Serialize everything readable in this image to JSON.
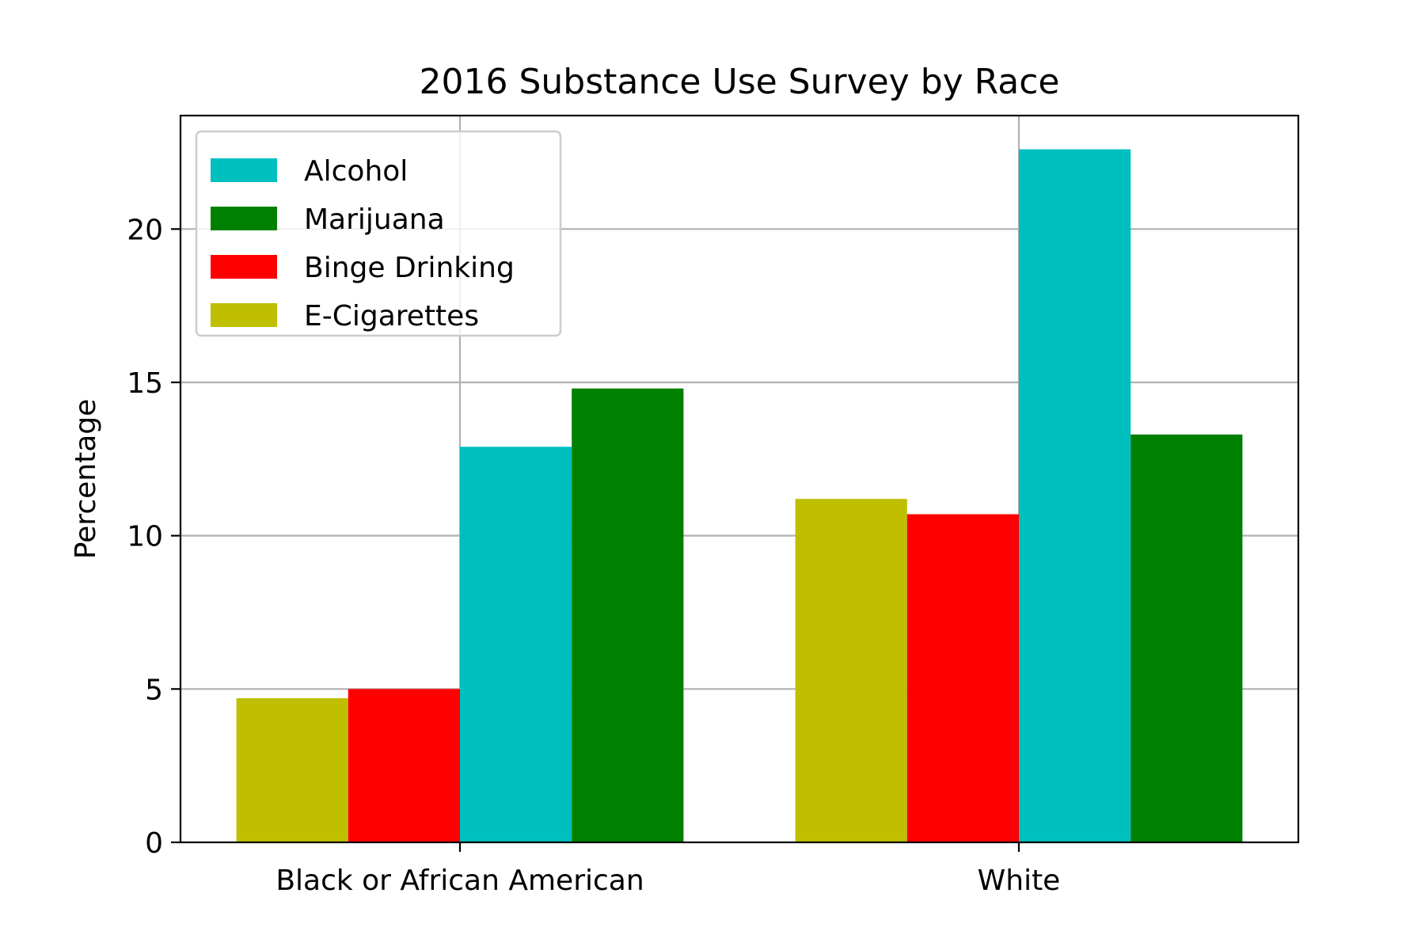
{
  "chart_data": {
    "type": "bar",
    "title": "2016 Substance Use Survey by Race",
    "xlabel": "",
    "ylabel": "Percentage",
    "categories": [
      "Black or African American",
      "White"
    ],
    "series": [
      {
        "name": "E-Cigarettes",
        "color": "#bfbf00",
        "values": [
          4.7,
          11.2
        ]
      },
      {
        "name": "Binge Drinking",
        "color": "#ff0000",
        "values": [
          5.0,
          10.7
        ]
      },
      {
        "name": "Alcohol",
        "color": "#00bfbf",
        "values": [
          12.9,
          22.6
        ]
      },
      {
        "name": "Marijuana",
        "color": "#008000",
        "values": [
          14.8,
          13.3
        ]
      }
    ],
    "legend_order": [
      "Alcohol",
      "Marijuana",
      "Binge Drinking",
      "E-Cigarettes"
    ],
    "legend_position": "top-left",
    "ylim": [
      0,
      23.7
    ],
    "yticks": [
      0,
      5,
      10,
      15,
      20
    ],
    "grid": true
  }
}
